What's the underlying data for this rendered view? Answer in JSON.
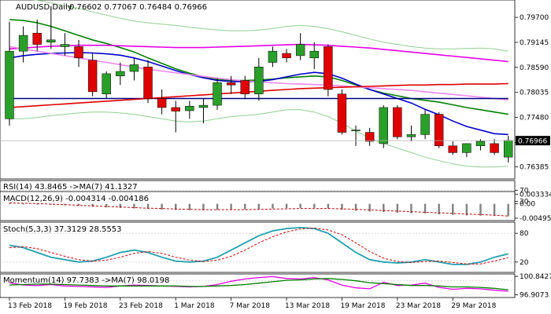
{
  "main": {
    "title": "AUDUSD,Daily",
    "ohlc": "0.76602 0.77067 0.76484 0.76966",
    "ylim": [
      0.7615,
      0.8005
    ],
    "y_ticks": [
      "0.79700",
      "0.79145",
      "0.78590",
      "0.78035",
      "0.77480",
      "0.76925",
      "0.76385"
    ],
    "current_price": "0.76966",
    "candles": [
      {
        "o": 0.7745,
        "h": 0.796,
        "l": 0.773,
        "c": 0.7895
      },
      {
        "o": 0.7895,
        "h": 0.795,
        "l": 0.787,
        "c": 0.793
      },
      {
        "o": 0.7935,
        "h": 0.7965,
        "l": 0.7895,
        "c": 0.791
      },
      {
        "o": 0.7915,
        "h": 0.7995,
        "l": 0.79,
        "c": 0.792
      },
      {
        "o": 0.7905,
        "h": 0.7935,
        "l": 0.7885,
        "c": 0.791
      },
      {
        "o": 0.7905,
        "h": 0.792,
        "l": 0.786,
        "c": 0.788
      },
      {
        "o": 0.7875,
        "h": 0.789,
        "l": 0.7795,
        "c": 0.7805
      },
      {
        "o": 0.78,
        "h": 0.785,
        "l": 0.779,
        "c": 0.7845
      },
      {
        "o": 0.784,
        "h": 0.787,
        "l": 0.782,
        "c": 0.785
      },
      {
        "o": 0.785,
        "h": 0.788,
        "l": 0.783,
        "c": 0.7865
      },
      {
        "o": 0.786,
        "h": 0.7875,
        "l": 0.778,
        "c": 0.779
      },
      {
        "o": 0.779,
        "h": 0.781,
        "l": 0.7755,
        "c": 0.777
      },
      {
        "o": 0.777,
        "h": 0.7785,
        "l": 0.7715,
        "c": 0.7762
      },
      {
        "o": 0.7763,
        "h": 0.7785,
        "l": 0.7745,
        "c": 0.7773
      },
      {
        "o": 0.777,
        "h": 0.779,
        "l": 0.7735,
        "c": 0.7775
      },
      {
        "o": 0.7775,
        "h": 0.7835,
        "l": 0.7765,
        "c": 0.7825
      },
      {
        "o": 0.7825,
        "h": 0.784,
        "l": 0.78,
        "c": 0.782
      },
      {
        "o": 0.783,
        "h": 0.784,
        "l": 0.779,
        "c": 0.78
      },
      {
        "o": 0.78,
        "h": 0.788,
        "l": 0.7785,
        "c": 0.786
      },
      {
        "o": 0.787,
        "h": 0.7905,
        "l": 0.786,
        "c": 0.7895
      },
      {
        "o": 0.789,
        "h": 0.79,
        "l": 0.787,
        "c": 0.788
      },
      {
        "o": 0.7885,
        "h": 0.7935,
        "l": 0.7875,
        "c": 0.791
      },
      {
        "o": 0.788,
        "h": 0.7915,
        "l": 0.7855,
        "c": 0.7895
      },
      {
        "o": 0.7905,
        "h": 0.791,
        "l": 0.7795,
        "c": 0.781
      },
      {
        "o": 0.78,
        "h": 0.781,
        "l": 0.771,
        "c": 0.7715
      },
      {
        "o": 0.772,
        "h": 0.773,
        "l": 0.7685,
        "c": 0.772
      },
      {
        "o": 0.7715,
        "h": 0.7725,
        "l": 0.7685,
        "c": 0.7695
      },
      {
        "o": 0.769,
        "h": 0.7775,
        "l": 0.768,
        "c": 0.777
      },
      {
        "o": 0.777,
        "h": 0.7775,
        "l": 0.77,
        "c": 0.7705
      },
      {
        "o": 0.7705,
        "h": 0.773,
        "l": 0.7695,
        "c": 0.771
      },
      {
        "o": 0.771,
        "h": 0.7765,
        "l": 0.77,
        "c": 0.7755
      },
      {
        "o": 0.7755,
        "h": 0.776,
        "l": 0.768,
        "c": 0.7685
      },
      {
        "o": 0.7685,
        "h": 0.7695,
        "l": 0.7665,
        "c": 0.767
      },
      {
        "o": 0.767,
        "h": 0.769,
        "l": 0.766,
        "c": 0.769
      },
      {
        "o": 0.7685,
        "h": 0.77,
        "l": 0.7675,
        "c": 0.7695
      },
      {
        "o": 0.769,
        "h": 0.77,
        "l": 0.7665,
        "c": 0.767
      },
      {
        "o": 0.766,
        "h": 0.7707,
        "l": 0.7648,
        "c": 0.7697
      }
    ],
    "moving_averages": [
      {
        "color": "#008000",
        "values": [
          0.7965,
          0.7963,
          0.7958,
          0.795,
          0.794,
          0.793,
          0.792,
          0.7912,
          0.7903,
          0.7893,
          0.788,
          0.7868,
          0.7856,
          0.7846,
          0.7838,
          0.7832,
          0.783,
          0.783,
          0.7831,
          0.7833,
          0.7836,
          0.7838,
          0.784,
          0.7838,
          0.783,
          0.782,
          0.781,
          0.7802,
          0.7796,
          0.779,
          0.7786,
          0.7782,
          0.7776,
          0.777,
          0.7765,
          0.776,
          0.7755
        ]
      },
      {
        "color": "#0000cc",
        "values": [
          0.788,
          0.7885,
          0.7888,
          0.789,
          0.7891,
          0.7892,
          0.7891,
          0.7889,
          0.7886,
          0.788,
          0.7872,
          0.7862,
          0.7852,
          0.7843,
          0.7836,
          0.783,
          0.7828,
          0.7827,
          0.7828,
          0.7832,
          0.7838,
          0.7844,
          0.7848,
          0.7845,
          0.7835,
          0.7822,
          0.781,
          0.78,
          0.779,
          0.778,
          0.7766,
          0.7754,
          0.774,
          0.7728,
          0.772,
          0.7712,
          0.771
        ]
      },
      {
        "color": "#e600e6",
        "values": [
          0.79,
          0.7902,
          0.7904,
          0.7906,
          0.7907,
          0.7908,
          0.7908,
          0.7908,
          0.7907,
          0.7906,
          0.7905,
          0.7904,
          0.7903,
          0.7903,
          0.7903,
          0.7904,
          0.7905,
          0.7906,
          0.7907,
          0.7908,
          0.7909,
          0.791,
          0.7909,
          0.7908,
          0.7906,
          0.7904,
          0.7902,
          0.7899,
          0.7896,
          0.7893,
          0.789,
          0.7887,
          0.7884,
          0.7881,
          0.7878,
          0.7875,
          0.7872
        ]
      },
      {
        "color": "#ee88ee",
        "values": [
          0.7905,
          0.79,
          0.7895,
          0.789,
          0.7885,
          0.788,
          0.7875,
          0.787,
          0.7865,
          0.786,
          0.7855,
          0.7851,
          0.7847,
          0.7843,
          0.7839,
          0.7835,
          0.7832,
          0.7829,
          0.7827,
          0.7825,
          0.7823,
          0.7822,
          0.7821,
          0.782,
          0.7818,
          0.7816,
          0.7814,
          0.7812,
          0.781,
          0.7808,
          0.7805,
          0.7802,
          0.7799,
          0.7796,
          0.7793,
          0.779,
          0.7787
        ]
      },
      {
        "color": "#000080",
        "values": [
          0.779,
          0.779,
          0.779,
          0.779,
          0.779,
          0.779,
          0.779,
          0.779,
          0.779,
          0.779,
          0.779,
          0.779,
          0.779,
          0.779,
          0.779,
          0.779,
          0.779,
          0.779,
          0.779,
          0.779,
          0.779,
          0.779,
          0.779,
          0.779,
          0.779,
          0.779,
          0.779,
          0.779,
          0.779,
          0.779,
          0.779,
          0.779,
          0.779,
          0.779,
          0.779,
          0.779,
          0.779
        ]
      },
      {
        "color": "#e00000",
        "values": [
          0.777,
          0.7772,
          0.7774,
          0.7776,
          0.7778,
          0.778,
          0.7782,
          0.7784,
          0.7786,
          0.7788,
          0.779,
          0.7792,
          0.7794,
          0.7796,
          0.7798,
          0.78,
          0.7802,
          0.7804,
          0.7806,
          0.7808,
          0.781,
          0.7812,
          0.7813,
          0.7814,
          0.7815,
          0.7816,
          0.7817,
          0.7818,
          0.7819,
          0.782,
          0.782,
          0.7821,
          0.7821,
          0.7822,
          0.7822,
          0.7822,
          0.7823
        ]
      },
      {
        "color": "#90d090",
        "values": [
          0.8015,
          0.8012,
          0.8008,
          0.8002,
          0.7996,
          0.799,
          0.7982,
          0.7975,
          0.7968,
          0.7962,
          0.7958,
          0.7955,
          0.7952,
          0.7948,
          0.7945,
          0.7942,
          0.794,
          0.794,
          0.7942,
          0.7945,
          0.795,
          0.7952,
          0.795,
          0.7945,
          0.7938,
          0.793,
          0.7922,
          0.7915,
          0.791,
          0.7905,
          0.7902,
          0.79,
          0.79,
          0.7901,
          0.7902,
          0.79,
          0.7895
        ]
      },
      {
        "color": "#90d090",
        "values": [
          0.7745,
          0.7745,
          0.7748,
          0.7752,
          0.7755,
          0.7758,
          0.776,
          0.776,
          0.7758,
          0.7755,
          0.775,
          0.7745,
          0.774,
          0.7738,
          0.774,
          0.7745,
          0.775,
          0.7752,
          0.7755,
          0.776,
          0.7765,
          0.7765,
          0.776,
          0.775,
          0.7735,
          0.7718,
          0.7702,
          0.769,
          0.768,
          0.767,
          0.766,
          0.7652,
          0.7645,
          0.764,
          0.7638,
          0.7638,
          0.764
        ]
      }
    ]
  },
  "rsi": {
    "title": "RSI(14) 43.8465  ->MA(7) 41.1327",
    "ticks": [
      "70",
      "30"
    ],
    "ylim": [
      0,
      100
    ],
    "series": [
      {
        "color": "#cc0000",
        "values": [
          55,
          56,
          55,
          54,
          53,
          52,
          48,
          48,
          49,
          50,
          45,
          43,
          41,
          42,
          43,
          46,
          47,
          46,
          49,
          52,
          51,
          53,
          52,
          46,
          38,
          38,
          37,
          43,
          39,
          39,
          43,
          38,
          36,
          37,
          38,
          37,
          44
        ]
      },
      {
        "color": "#008000",
        "values": [
          52,
          53,
          54,
          54,
          54,
          54,
          53,
          52,
          51,
          50,
          49,
          48,
          46,
          45,
          44,
          44,
          44,
          44,
          45,
          46,
          47,
          49,
          50,
          50,
          48,
          46,
          44,
          43,
          41,
          40,
          40,
          39,
          39,
          38,
          38,
          38,
          41
        ]
      }
    ]
  },
  "macd": {
    "title": "MACD(12,26,9) -0.004314 -0.004186",
    "ticks": [
      "0.003334",
      "0.00",
      "-0.004952"
    ],
    "ylim": [
      -0.0055,
      0.0037
    ],
    "histogram": [
      0.0002,
      0.0001,
      0.0,
      -0.0003,
      -0.0005,
      -0.0007,
      -0.001,
      -0.0012,
      -0.0014,
      -0.0016,
      -0.0018,
      -0.002,
      -0.0021,
      -0.0022,
      -0.0022,
      -0.0021,
      -0.002,
      -0.0019,
      -0.0018,
      -0.0016,
      -0.0015,
      -0.0014,
      -0.0014,
      -0.0016,
      -0.002,
      -0.0024,
      -0.0027,
      -0.0028,
      -0.0031,
      -0.0033,
      -0.0033,
      -0.0036,
      -0.0038,
      -0.004,
      -0.0041,
      -0.0042,
      -0.0043
    ],
    "signal": [
      0.0003,
      0.0002,
      0.0001,
      -0.0001,
      -0.0003,
      -0.0005,
      -0.0007,
      -0.0009,
      -0.0011,
      -0.0013,
      -0.0015,
      -0.0016,
      -0.0018,
      -0.0019,
      -0.002,
      -0.002,
      -0.002,
      -0.002,
      -0.0019,
      -0.0018,
      -0.0017,
      -0.0016,
      -0.0016,
      -0.0016,
      -0.0017,
      -0.0019,
      -0.0021,
      -0.0023,
      -0.0025,
      -0.0027,
      -0.0029,
      -0.0031,
      -0.0033,
      -0.0035,
      -0.0037,
      -0.0039,
      -0.0042
    ],
    "colors": {
      "histogram": "#808080",
      "signal": "#cc0000"
    }
  },
  "stoch": {
    "title": "Stoch(5,3,3) 37.3129 28.5553",
    "ticks": [
      "80",
      "20"
    ],
    "ylim": [
      0,
      100
    ],
    "series": [
      {
        "color": "#20a0b0",
        "values": [
          55,
          50,
          40,
          30,
          25,
          20,
          22,
          30,
          40,
          45,
          40,
          30,
          22,
          20,
          22,
          30,
          45,
          60,
          75,
          85,
          90,
          92,
          90,
          80,
          60,
          40,
          25,
          20,
          18,
          20,
          25,
          20,
          15,
          15,
          20,
          30,
          37
        ]
      },
      {
        "color": "#cc0000",
        "values": [
          50,
          52,
          48,
          40,
          32,
          25,
          22,
          24,
          30,
          38,
          42,
          38,
          30,
          24,
          21,
          24,
          32,
          45,
          60,
          73,
          83,
          89,
          91,
          87,
          77,
          60,
          42,
          28,
          21,
          19,
          21,
          22,
          19,
          16,
          16,
          22,
          29
        ]
      }
    ]
  },
  "momentum": {
    "title": "Momentum(14) 97.7383  ->MA(7) 98.0198",
    "ticks": [
      "100.8427",
      "96.9073"
    ],
    "ylim": [
      96.5,
      101.2
    ],
    "series": [
      {
        "color": "#e600e6",
        "values": [
          99.5,
          99.0,
          98.9,
          99.1,
          98.8,
          98.7,
          98.6,
          98.5,
          98.8,
          99.0,
          98.9,
          98.8,
          98.7,
          98.6,
          98.7,
          99.1,
          99.8,
          100.3,
          100.6,
          100.8,
          100.4,
          100.3,
          100.6,
          100.1,
          99.0,
          98.4,
          98.2,
          99.6,
          98.9,
          99.0,
          99.4,
          98.5,
          98.1,
          98.3,
          98.2,
          97.9,
          97.7
        ]
      },
      {
        "color": "#008000",
        "values": [
          99.0,
          99.1,
          99.2,
          99.2,
          99.1,
          99.0,
          98.9,
          98.8,
          98.8,
          98.8,
          98.8,
          98.8,
          98.8,
          98.7,
          98.7,
          98.8,
          98.9,
          99.1,
          99.4,
          99.7,
          100.0,
          100.1,
          100.3,
          100.4,
          100.2,
          99.9,
          99.5,
          99.3,
          99.1,
          98.9,
          98.9,
          98.8,
          98.6,
          98.6,
          98.5,
          98.3,
          98.0
        ]
      }
    ]
  },
  "x_labels": [
    {
      "label": "13 Feb 2018",
      "index": 0
    },
    {
      "label": "19 Feb 2018",
      "index": 4
    },
    {
      "label": "23 Feb 2018",
      "index": 8
    },
    {
      "label": "1 Mar 2018",
      "index": 12
    },
    {
      "label": "7 Mar 2018",
      "index": 16
    },
    {
      "label": "13 Mar 2018",
      "index": 20
    },
    {
      "label": "19 Mar 2018",
      "index": 24
    },
    {
      "label": "23 Mar 2018",
      "index": 28
    },
    {
      "label": "29 Mar 2018",
      "index": 32
    }
  ],
  "colors": {
    "bull": "#2aa02a",
    "bear": "#e00000",
    "wick": "#000000"
  }
}
